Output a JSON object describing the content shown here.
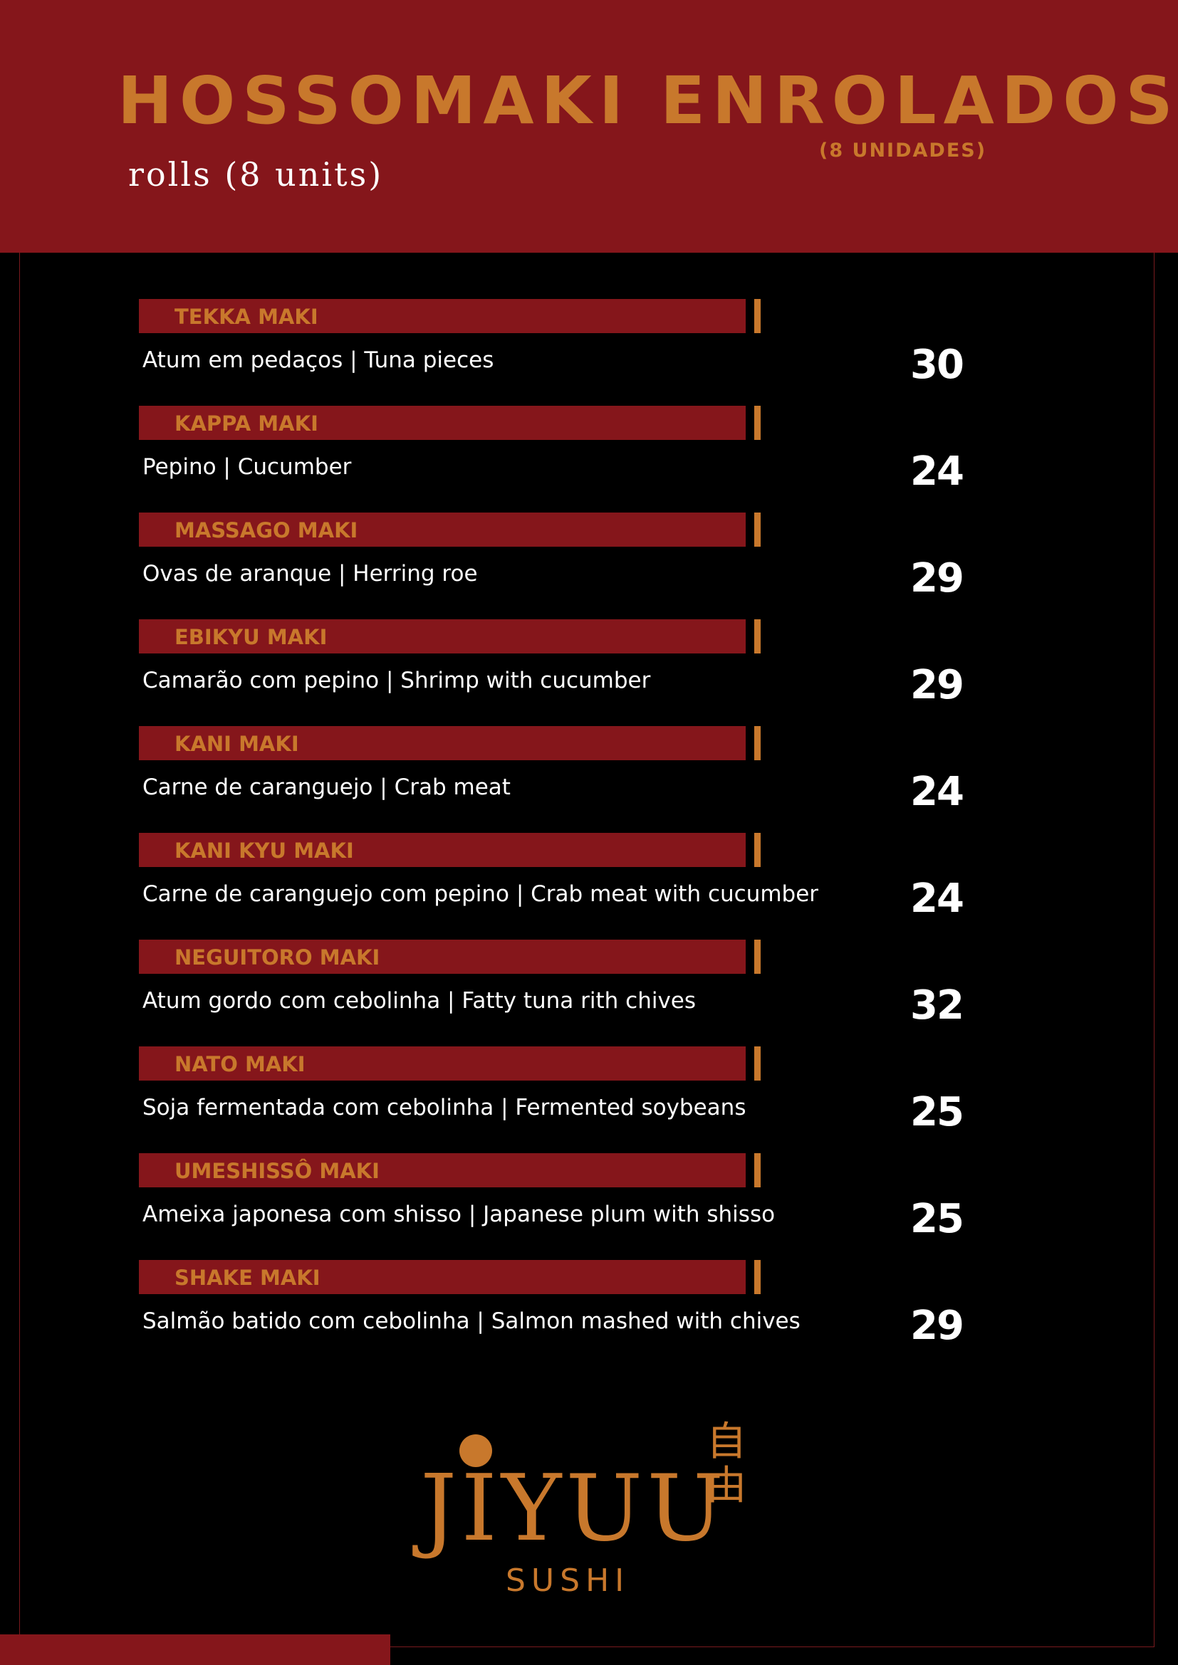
{
  "header": {
    "title": "HOSSOMAKI ENROLADOS",
    "title_units": "(8 UNIDADES)",
    "subtitle": "rolls (8 units)"
  },
  "items": [
    {
      "name": "TEKKA MAKI",
      "description": "Atum em pedaços | Tuna pieces",
      "price": "30"
    },
    {
      "name": "KAPPA MAKI",
      "description": "Pepino | Cucumber",
      "price": "24"
    },
    {
      "name": "MASSAGO MAKI",
      "description": "Ovas de aranque | Herring roe",
      "price": "29"
    },
    {
      "name": "EBIKYU MAKI",
      "description": "Camarão com pepino | Shrimp with cucumber",
      "price": "29"
    },
    {
      "name": "KANI MAKI",
      "description": "Carne de caranguejo | Crab meat",
      "price": "24"
    },
    {
      "name": "KANI KYU MAKI",
      "description": "Carne de caranguejo com pepino | Crab meat with cucumber",
      "price": "24"
    },
    {
      "name": "NEGUITORO MAKI",
      "description": "Atum gordo com cebolinha | Fatty tuna rith chives",
      "price": "32"
    },
    {
      "name": "NATO MAKI",
      "description": "Soja fermentada com cebolinha | Fermented soybeans",
      "price": "25"
    },
    {
      "name": "UMESHISSÔ MAKI",
      "description": "Ameixa japonesa com shisso | Japanese plum with shisso",
      "price": "25"
    },
    {
      "name": "SHAKE MAKI",
      "description": "Salmão batido com cebolinha | Salmon mashed with chives",
      "price": "29"
    }
  ],
  "logo": {
    "wordmark": "JIYUU",
    "sub": "SUSHI",
    "kanji": "自由"
  },
  "colors": {
    "accent": "#c8782c",
    "band": "#85161b",
    "background": "#000000"
  }
}
